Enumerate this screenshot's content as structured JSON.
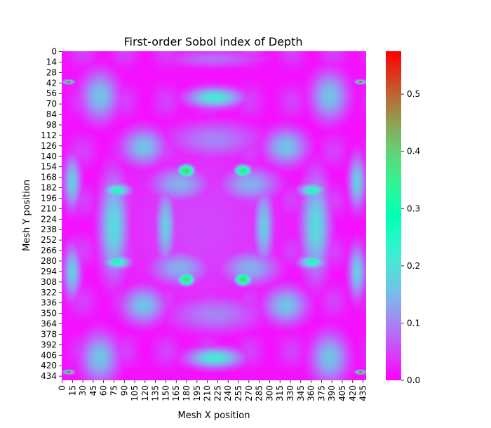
{
  "chart_data": {
    "type": "heatmap",
    "title": "First-order Sobol index of Depth",
    "xlabel": "Mesh X position",
    "ylabel": "Mesh Y position",
    "x_tick_labels": [
      "0",
      "15",
      "30",
      "45",
      "60",
      "75",
      "90",
      "105",
      "120",
      "135",
      "150",
      "165",
      "180",
      "195",
      "210",
      "225",
      "240",
      "255",
      "270",
      "285",
      "300",
      "315",
      "330",
      "345",
      "360",
      "375",
      "390",
      "405",
      "420",
      "435"
    ],
    "y_tick_labels": [
      "0",
      "14",
      "28",
      "42",
      "56",
      "70",
      "84",
      "98",
      "112",
      "126",
      "140",
      "154",
      "168",
      "182",
      "196",
      "210",
      "224",
      "238",
      "252",
      "266",
      "280",
      "294",
      "308",
      "322",
      "336",
      "350",
      "364",
      "378",
      "392",
      "406",
      "420",
      "434"
    ],
    "x_range": [
      0,
      440
    ],
    "y_range": [
      0,
      440
    ],
    "colorbar": {
      "min": 0.0,
      "max": 0.575,
      "ticks": [
        "0.0",
        "0.1",
        "0.2",
        "0.3",
        "0.4",
        "0.5"
      ],
      "colormap": "rainbow"
    },
    "features": [
      {
        "x": 201,
        "y": 235,
        "sx": 145,
        "sy": 140,
        "v": 0.05
      },
      {
        "x": 170,
        "y": 178,
        "sx": 40,
        "sy": 22,
        "v": 0.14
      },
      {
        "x": 272,
        "y": 178,
        "sx": 40,
        "sy": 22,
        "v": 0.14
      },
      {
        "x": 170,
        "y": 290,
        "sx": 40,
        "sy": 22,
        "v": 0.14
      },
      {
        "x": 272,
        "y": 290,
        "sx": 40,
        "sy": 22,
        "v": 0.14
      },
      {
        "x": 150,
        "y": 234,
        "sx": 13,
        "sy": 48,
        "v": 0.17
      },
      {
        "x": 292,
        "y": 234,
        "sx": 13,
        "sy": 48,
        "v": 0.17
      },
      {
        "x": 221,
        "y": 118,
        "sx": 65,
        "sy": 24,
        "v": 0.1
      },
      {
        "x": 221,
        "y": 352,
        "sx": 65,
        "sy": 24,
        "v": 0.1
      },
      {
        "x": 221,
        "y": 62,
        "sx": 38,
        "sy": 13,
        "v": 0.21
      },
      {
        "x": 221,
        "y": 410,
        "sx": 38,
        "sy": 13,
        "v": 0.21
      },
      {
        "x": 75,
        "y": 234,
        "sx": 20,
        "sy": 65,
        "v": 0.19
      },
      {
        "x": 367,
        "y": 234,
        "sx": 20,
        "sy": 65,
        "v": 0.19
      },
      {
        "x": 80,
        "y": 186,
        "sx": 18,
        "sy": 9,
        "v": 0.23
      },
      {
        "x": 362,
        "y": 186,
        "sx": 18,
        "sy": 9,
        "v": 0.23
      },
      {
        "x": 80,
        "y": 282,
        "sx": 18,
        "sy": 9,
        "v": 0.23
      },
      {
        "x": 362,
        "y": 282,
        "sx": 18,
        "sy": 9,
        "v": 0.23
      },
      {
        "x": 55,
        "y": 60,
        "sx": 26,
        "sy": 32,
        "v": 0.16
      },
      {
        "x": 387,
        "y": 60,
        "sx": 26,
        "sy": 32,
        "v": 0.16
      },
      {
        "x": 55,
        "y": 410,
        "sx": 26,
        "sy": 32,
        "v": 0.16
      },
      {
        "x": 387,
        "y": 410,
        "sx": 26,
        "sy": 32,
        "v": 0.16
      },
      {
        "x": 118,
        "y": 128,
        "sx": 30,
        "sy": 24,
        "v": 0.16
      },
      {
        "x": 324,
        "y": 128,
        "sx": 30,
        "sy": 24,
        "v": 0.16
      },
      {
        "x": 118,
        "y": 340,
        "sx": 30,
        "sy": 24,
        "v": 0.16
      },
      {
        "x": 324,
        "y": 340,
        "sx": 30,
        "sy": 24,
        "v": 0.16
      },
      {
        "x": 15,
        "y": 175,
        "sx": 12,
        "sy": 34,
        "v": 0.17
      },
      {
        "x": 427,
        "y": 175,
        "sx": 12,
        "sy": 34,
        "v": 0.17
      },
      {
        "x": 15,
        "y": 295,
        "sx": 12,
        "sy": 34,
        "v": 0.17
      },
      {
        "x": 427,
        "y": 295,
        "sx": 12,
        "sy": 34,
        "v": 0.17
      },
      {
        "x": 221,
        "y": 10,
        "sx": 70,
        "sy": 12,
        "v": 0.08
      },
      {
        "x": 221,
        "y": 460,
        "sx": 70,
        "sy": 12,
        "v": 0.08
      },
      {
        "x": 180,
        "y": 160,
        "sx": 10,
        "sy": 7,
        "v": 0.44
      },
      {
        "x": 262,
        "y": 160,
        "sx": 10,
        "sy": 7,
        "v": 0.4
      },
      {
        "x": 180,
        "y": 305,
        "sx": 10,
        "sy": 7,
        "v": 0.42
      },
      {
        "x": 262,
        "y": 305,
        "sx": 10,
        "sy": 7,
        "v": 0.42
      },
      {
        "x": 80,
        "y": 188,
        "sx": 7,
        "sy": 3,
        "v": 0.36
      },
      {
        "x": 362,
        "y": 188,
        "sx": 7,
        "sy": 3,
        "v": 0.36
      },
      {
        "x": 80,
        "y": 280,
        "sx": 7,
        "sy": 3,
        "v": 0.36
      },
      {
        "x": 362,
        "y": 280,
        "sx": 7,
        "sy": 3,
        "v": 0.36
      },
      {
        "x": 10,
        "y": 41,
        "sx": 6,
        "sy": 2,
        "v": 0.55
      },
      {
        "x": 432,
        "y": 41,
        "sx": 6,
        "sy": 2,
        "v": 0.55
      },
      {
        "x": 10,
        "y": 429,
        "sx": 6,
        "sy": 2,
        "v": 0.55
      },
      {
        "x": 432,
        "y": 429,
        "sx": 6,
        "sy": 2,
        "v": 0.55
      }
    ]
  }
}
